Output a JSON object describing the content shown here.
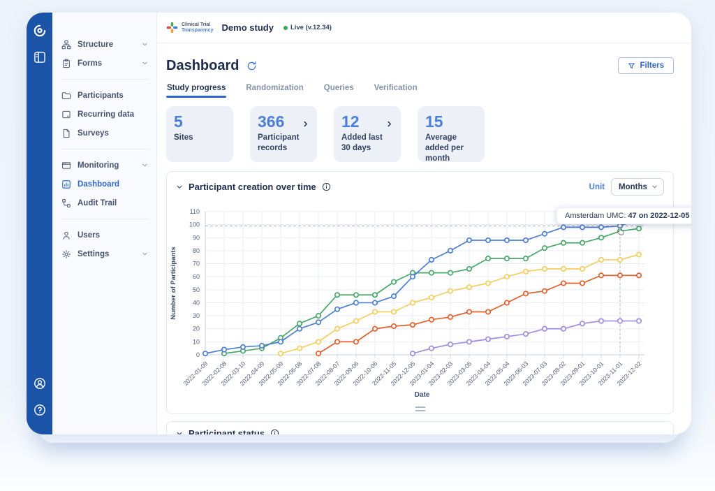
{
  "rail": {
    "icons": [
      "app-logo",
      "collapse-sidebar",
      "account",
      "help"
    ]
  },
  "sidebar": {
    "items": [
      {
        "id": "structure",
        "label": "Structure",
        "icon": "structure-icon",
        "chevron": true
      },
      {
        "id": "forms",
        "label": "Forms",
        "icon": "forms-icon",
        "chevron": true
      },
      {
        "type": "divider"
      },
      {
        "id": "participants",
        "label": "Participants",
        "icon": "participants-icon"
      },
      {
        "id": "recurring-data",
        "label": "Recurring data",
        "icon": "recurring-data-icon"
      },
      {
        "id": "surveys",
        "label": "Surveys",
        "icon": "surveys-icon"
      },
      {
        "type": "divider"
      },
      {
        "id": "monitoring",
        "label": "Monitoring",
        "icon": "monitoring-icon",
        "chevron": true
      },
      {
        "id": "dashboard",
        "label": "Dashboard",
        "icon": "dashboard-icon",
        "active": true
      },
      {
        "id": "audit-trail",
        "label": "Audit Trail",
        "icon": "audit-trail-icon"
      },
      {
        "type": "divider"
      },
      {
        "id": "users",
        "label": "Users",
        "icon": "users-icon"
      },
      {
        "id": "settings",
        "label": "Settings",
        "icon": "settings-icon",
        "chevron": true
      }
    ]
  },
  "topbar": {
    "brand_line1": "Clinical Trial",
    "brand_line2": "Transparency",
    "study_title": "Demo study",
    "status": "Live (v.12.34)"
  },
  "page": {
    "title": "Dashboard",
    "filters_label": "Filters",
    "tabs": [
      {
        "label": "Study progress",
        "active": true
      },
      {
        "label": "Randomization"
      },
      {
        "label": "Queries"
      },
      {
        "label": "Verification"
      }
    ]
  },
  "stats": [
    {
      "value": "5",
      "label": "Sites",
      "chevron": false
    },
    {
      "value": "366",
      "label": "Participant records",
      "chevron": true
    },
    {
      "value": "12",
      "label": "Added last 30 days",
      "chevron": true
    },
    {
      "value": "15",
      "label": "Average added per month",
      "chevron": false
    }
  ],
  "chart_panel": {
    "title": "Participant creation over time",
    "unit_label": "Unit",
    "unit_value": "Months",
    "tooltip": {
      "site": "Amsterdam UMC:",
      "value": "47 on 2022-12-05"
    }
  },
  "chart_data": {
    "type": "line",
    "title": "Participant creation over time",
    "xlabel": "Date",
    "ylabel": "Number of Participants",
    "ylim": [
      0,
      110
    ],
    "ytick_step": 10,
    "grid": true,
    "legend": "none",
    "x": [
      "2022-01-09",
      "2022-02-08",
      "2022-03-10",
      "2022-04-09",
      "2022-05-09",
      "2022-06-08",
      "2022-07-08",
      "2022-08-07",
      "2022-09-06",
      "2022-10-06",
      "2022-11-05",
      "2022-12-05",
      "2023-01-04",
      "2023-02-03",
      "2023-03-05",
      "2023-04-04",
      "2023-05-04",
      "2023-06-03",
      "2023-07-03",
      "2023-08-02",
      "2023-09-01",
      "2023-10-01",
      "2023-11-01",
      "2023-12-02"
    ],
    "series": [
      {
        "name": "site-blue",
        "color": "#4d7fd3",
        "values": [
          1,
          4,
          6,
          7,
          10,
          20,
          25,
          35,
          40,
          40,
          45,
          60,
          73,
          80,
          88,
          88,
          88,
          88,
          93,
          98,
          98,
          98,
          99,
          104
        ]
      },
      {
        "name": "site-green",
        "color": "#47a86a",
        "values": [
          null,
          1,
          3,
          5,
          13,
          24,
          30,
          46,
          46,
          46,
          56,
          63,
          63,
          63,
          66,
          74,
          74,
          74,
          82,
          86,
          86,
          90,
          95,
          97
        ]
      },
      {
        "name": "site-yellow",
        "color": "#f5cd60",
        "values": [
          null,
          null,
          null,
          null,
          1,
          5,
          10,
          20,
          26,
          33,
          33,
          40,
          44,
          49,
          52,
          55,
          60,
          64,
          66,
          66,
          66,
          73,
          73,
          77
        ]
      },
      {
        "name": "site-orange",
        "color": "#e25f2b",
        "values": [
          null,
          null,
          null,
          null,
          null,
          null,
          1,
          10,
          10,
          20,
          22,
          23,
          27,
          29,
          33,
          33,
          40,
          47,
          49,
          55,
          55,
          61,
          61,
          61
        ]
      },
      {
        "name": "site-purple",
        "color": "#a08ce0",
        "values": [
          null,
          null,
          null,
          null,
          null,
          null,
          null,
          null,
          null,
          null,
          null,
          1,
          5,
          8,
          10,
          12,
          14,
          16,
          20,
          20,
          24,
          26,
          26,
          26
        ]
      }
    ],
    "reference_line_y": 99,
    "crosshair_x": "2023-11-01"
  },
  "status_panel": {
    "title": "Participant status"
  }
}
